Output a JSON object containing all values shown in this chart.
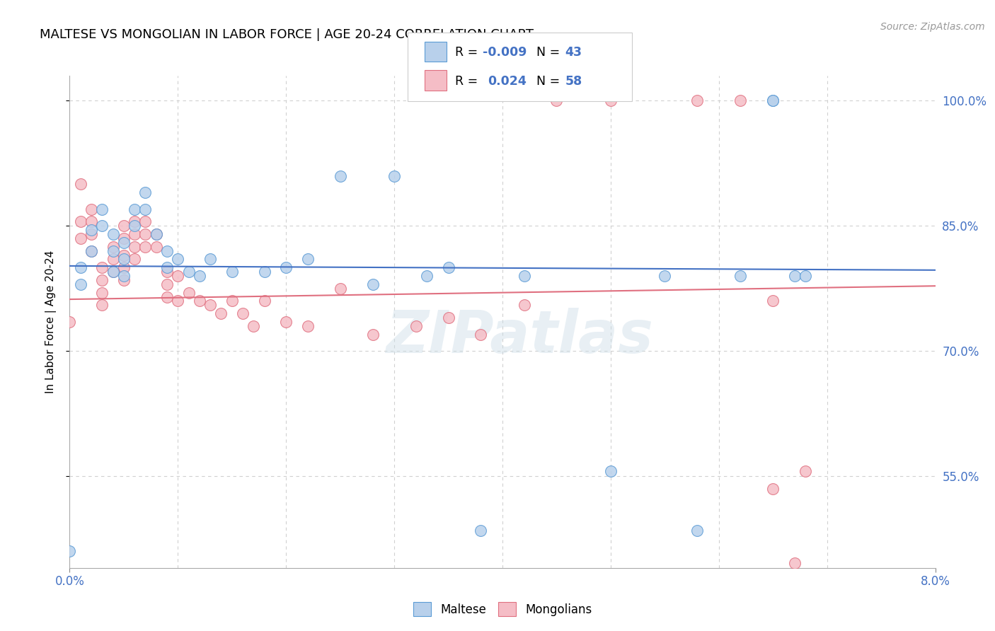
{
  "title": "MALTESE VS MONGOLIAN IN LABOR FORCE | AGE 20-24 CORRELATION CHART",
  "source": "Source: ZipAtlas.com",
  "ylabel": "In Labor Force | Age 20-24",
  "xmin": 0.0,
  "xmax": 0.08,
  "ymin": 0.44,
  "ymax": 1.03,
  "yticks": [
    0.55,
    0.7,
    0.85,
    1.0
  ],
  "ytick_labels": [
    "55.0%",
    "70.0%",
    "85.0%",
    "100.0%"
  ],
  "maltese_R": "-0.009",
  "maltese_N": "43",
  "mongolian_R": "0.024",
  "mongolian_N": "58",
  "maltese_color": "#b8d0eb",
  "mongolian_color": "#f5bdc6",
  "maltese_edge_color": "#5b9bd5",
  "mongolian_edge_color": "#e07080",
  "trend_blue": "#4472c4",
  "trend_pink": "#e07080",
  "background_color": "#ffffff",
  "grid_color": "#d0d0d0",
  "watermark": "ZIPatlas",
  "maltese_x": [
    0.001,
    0.001,
    0.002,
    0.002,
    0.003,
    0.003,
    0.004,
    0.004,
    0.004,
    0.005,
    0.005,
    0.005,
    0.006,
    0.006,
    0.007,
    0.007,
    0.008,
    0.009,
    0.009,
    0.01,
    0.011,
    0.012,
    0.013,
    0.015,
    0.018,
    0.02,
    0.022,
    0.025,
    0.028,
    0.03,
    0.033,
    0.035,
    0.038,
    0.042,
    0.05,
    0.055,
    0.058,
    0.062,
    0.065,
    0.065,
    0.067,
    0.068,
    0.0
  ],
  "maltese_y": [
    0.8,
    0.78,
    0.845,
    0.82,
    0.87,
    0.85,
    0.84,
    0.82,
    0.795,
    0.83,
    0.81,
    0.79,
    0.87,
    0.85,
    0.89,
    0.87,
    0.84,
    0.82,
    0.8,
    0.81,
    0.795,
    0.79,
    0.81,
    0.795,
    0.795,
    0.8,
    0.81,
    0.91,
    0.78,
    0.91,
    0.79,
    0.8,
    0.485,
    0.79,
    0.556,
    0.79,
    0.485,
    0.79,
    1.0,
    1.0,
    0.79,
    0.79,
    0.46
  ],
  "mongolian_x": [
    0.0,
    0.001,
    0.001,
    0.001,
    0.002,
    0.002,
    0.002,
    0.002,
    0.003,
    0.003,
    0.003,
    0.003,
    0.004,
    0.004,
    0.004,
    0.005,
    0.005,
    0.005,
    0.005,
    0.005,
    0.006,
    0.006,
    0.006,
    0.006,
    0.007,
    0.007,
    0.007,
    0.008,
    0.008,
    0.009,
    0.009,
    0.009,
    0.01,
    0.01,
    0.011,
    0.012,
    0.013,
    0.014,
    0.015,
    0.016,
    0.017,
    0.018,
    0.02,
    0.022,
    0.025,
    0.028,
    0.032,
    0.035,
    0.038,
    0.042,
    0.045,
    0.05,
    0.058,
    0.062,
    0.065,
    0.065,
    0.067,
    0.068
  ],
  "mongolian_y": [
    0.735,
    0.855,
    0.835,
    0.9,
    0.87,
    0.855,
    0.84,
    0.82,
    0.8,
    0.785,
    0.77,
    0.755,
    0.825,
    0.81,
    0.795,
    0.85,
    0.835,
    0.815,
    0.8,
    0.785,
    0.855,
    0.84,
    0.825,
    0.81,
    0.855,
    0.84,
    0.825,
    0.84,
    0.825,
    0.795,
    0.78,
    0.765,
    0.79,
    0.76,
    0.77,
    0.76,
    0.755,
    0.745,
    0.76,
    0.745,
    0.73,
    0.76,
    0.735,
    0.73,
    0.775,
    0.72,
    0.73,
    0.74,
    0.72,
    0.755,
    1.0,
    1.0,
    1.0,
    1.0,
    0.535,
    0.76,
    0.446,
    0.556
  ],
  "trend_blue_x0": 0.0,
  "trend_blue_x1": 0.08,
  "trend_blue_y0": 0.802,
  "trend_blue_y1": 0.797,
  "trend_pink_x0": 0.0,
  "trend_pink_x1": 0.08,
  "trend_pink_y0": 0.762,
  "trend_pink_y1": 0.778
}
